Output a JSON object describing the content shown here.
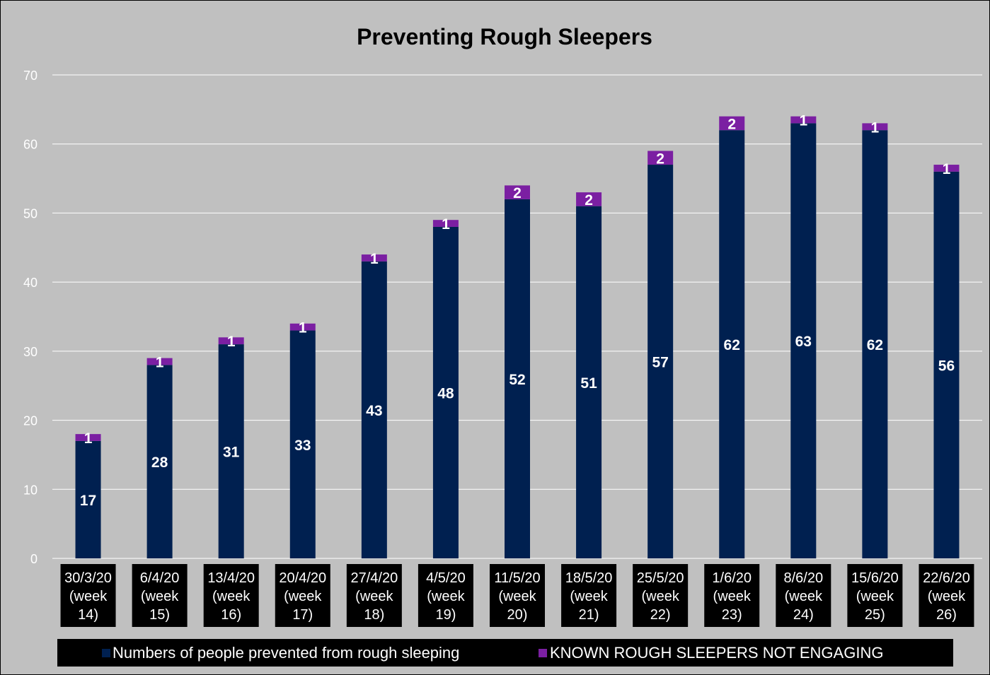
{
  "chart_data": {
    "type": "bar",
    "stacked": true,
    "title": "Preventing Rough Sleepers",
    "xlabel": "",
    "ylabel": "",
    "ylim": [
      0,
      70
    ],
    "yticks": [
      0,
      10,
      20,
      30,
      40,
      50,
      60,
      70
    ],
    "grid": true,
    "legend_position": "bottom",
    "categories": [
      [
        "30/3/20",
        "(week",
        "14)"
      ],
      [
        "6/4/20",
        "(week",
        "15)"
      ],
      [
        "13/4/20",
        "(week",
        "16)"
      ],
      [
        "20/4/20",
        "(week",
        "17)"
      ],
      [
        "27/4/20",
        "(week",
        "18)"
      ],
      [
        "4/5/20",
        "(week",
        "19)"
      ],
      [
        "11/5/20",
        "(week",
        "20)"
      ],
      [
        "18/5/20",
        "(week",
        "21)"
      ],
      [
        "25/5/20",
        "(week",
        "22)"
      ],
      [
        "1/6/20",
        "(week",
        "23)"
      ],
      [
        "8/6/20",
        "(week",
        "24)"
      ],
      [
        "15/6/20",
        "(week",
        "25)"
      ],
      [
        "22/6/20",
        "(week",
        "26)"
      ]
    ],
    "series": [
      {
        "name": "Numbers of people prevented from rough sleeping",
        "color": "#002050",
        "values": [
          17,
          28,
          31,
          33,
          43,
          48,
          52,
          51,
          57,
          62,
          63,
          62,
          56
        ]
      },
      {
        "name": "KNOWN ROUGH SLEEPERS NOT ENGAGING",
        "color": "#7b1fa2",
        "values": [
          1,
          1,
          1,
          1,
          1,
          1,
          2,
          2,
          2,
          2,
          1,
          1,
          1
        ]
      }
    ]
  },
  "colors": {
    "background": "#c0c0c0",
    "gridline": "#ffffff",
    "label_box": "#000000"
  }
}
